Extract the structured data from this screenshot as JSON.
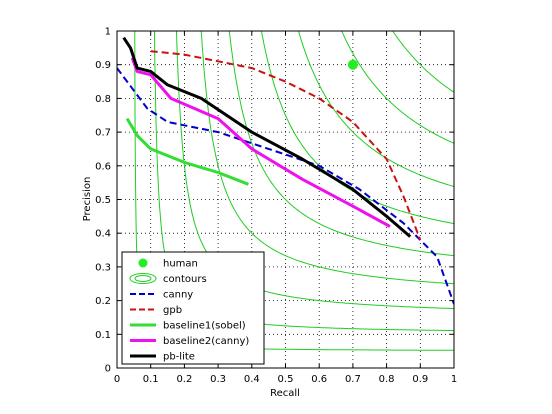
{
  "chart_data": {
    "type": "line",
    "title": "",
    "xlabel": "Recall",
    "ylabel": "Precision",
    "xlim": [
      0,
      1
    ],
    "ylim": [
      0,
      1
    ],
    "xticks": [
      "0",
      "0.1",
      "0.2",
      "0.3",
      "0.4",
      "0.5",
      "0.6",
      "0.7",
      "0.8",
      "0.9",
      "1"
    ],
    "yticks": [
      "0",
      "0.1",
      "0.2",
      "0.3",
      "0.4",
      "0.5",
      "0.6",
      "0.7",
      "0.8",
      "0.9",
      "1"
    ],
    "grid": true,
    "legend_position": "bottom-left",
    "contour_color": "#22cc22",
    "contour_f_values": [
      0.1,
      0.2,
      0.3,
      0.4,
      0.5,
      0.6,
      0.7,
      0.8,
      0.9
    ],
    "human": {
      "name": "human",
      "x": 0.7,
      "y": 0.9,
      "color": "#22ee22"
    },
    "contours_label": "contours",
    "series": [
      {
        "name": "canny",
        "color": "#0000cc",
        "style": "dashed",
        "width": 2,
        "x": [
          0.0,
          0.09,
          0.15,
          0.3,
          0.45,
          0.6,
          0.72,
          0.85,
          0.95,
          1.0
        ],
        "y": [
          0.89,
          0.77,
          0.73,
          0.7,
          0.65,
          0.6,
          0.53,
          0.43,
          0.33,
          0.19
        ]
      },
      {
        "name": "gpb",
        "color": "#cc1111",
        "style": "dashed",
        "width": 2,
        "x": [
          0.1,
          0.2,
          0.3,
          0.4,
          0.5,
          0.6,
          0.7,
          0.8,
          0.85,
          0.9
        ],
        "y": [
          0.94,
          0.93,
          0.91,
          0.89,
          0.85,
          0.8,
          0.73,
          0.62,
          0.51,
          0.38
        ]
      },
      {
        "name": "baseline1(sobel)",
        "color": "#33dd33",
        "style": "solid",
        "width": 3,
        "x": [
          0.03,
          0.06,
          0.1,
          0.2,
          0.3,
          0.39
        ],
        "y": [
          0.74,
          0.69,
          0.65,
          0.61,
          0.58,
          0.545
        ]
      },
      {
        "name": "baseline2(canny)",
        "color": "#ee11ee",
        "style": "solid",
        "width": 3,
        "x": [
          0.045,
          0.06,
          0.1,
          0.16,
          0.3,
          0.4,
          0.55,
          0.7,
          0.81
        ],
        "y": [
          0.92,
          0.88,
          0.87,
          0.8,
          0.74,
          0.65,
          0.56,
          0.48,
          0.42
        ]
      },
      {
        "name": "pb-lite",
        "color": "#000000",
        "style": "solid",
        "width": 3,
        "x": [
          0.02,
          0.04,
          0.06,
          0.1,
          0.15,
          0.25,
          0.4,
          0.55,
          0.7,
          0.8,
          0.87
        ],
        "y": [
          0.98,
          0.95,
          0.89,
          0.88,
          0.84,
          0.8,
          0.7,
          0.62,
          0.53,
          0.45,
          0.39
        ]
      }
    ]
  }
}
